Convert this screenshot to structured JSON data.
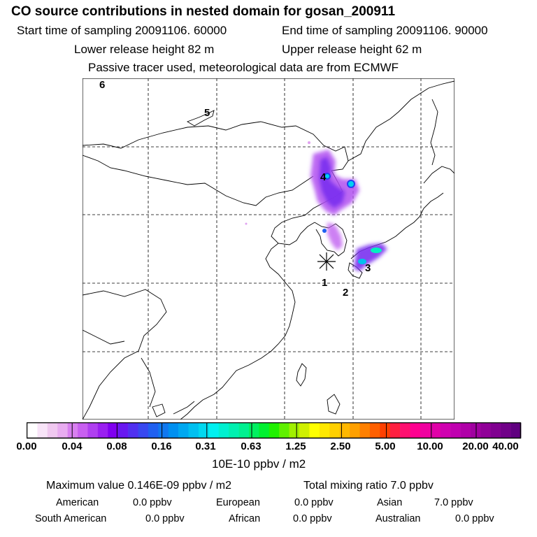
{
  "header": {
    "title": "CO  source contributions in nested domain for gosan_200911",
    "start_label": "Start time of sampling 20091106. 60000",
    "end_label": "End time of sampling 20091106. 90000",
    "lower_height": "Lower release height   82 m",
    "upper_height": "Upper release height   62 m",
    "tracer_note": "Passive tracer used, meteorological data are from ECMWF"
  },
  "map": {
    "site_markers": [
      "1",
      "2",
      "3",
      "4",
      "5",
      "6"
    ],
    "receptor_symbol": "*"
  },
  "colorbar": {
    "ticks": [
      "0.00",
      "0.04",
      "0.08",
      "0.16",
      "0.31",
      "0.63",
      "1.25",
      "2.50",
      "5.00",
      "10.00",
      "20.00",
      "40.00"
    ],
    "units": "10E-10 ppbv / m2",
    "colors": [
      "#ffffff",
      "#f8e4f8",
      "#f0c8f0",
      "#e8acf0",
      "#d880f0",
      "#c860f0",
      "#b040f0",
      "#9a20f0",
      "#8000f0",
      "#6818f0",
      "#5030f0",
      "#3848f0",
      "#2060f0",
      "#1078f0",
      "#0090f0",
      "#00a8f0",
      "#00c0f0",
      "#00d8f0",
      "#00f0f0",
      "#00f0d0",
      "#00f0b0",
      "#00f090",
      "#00f060",
      "#00f030",
      "#20f000",
      "#60f000",
      "#a0f000",
      "#d0f000",
      "#ffff00",
      "#ffe800",
      "#ffd000",
      "#ffb800",
      "#ffa000",
      "#ff8000",
      "#ff6000",
      "#ff4000",
      "#ff2040",
      "#ff1070",
      "#ff0090",
      "#f000a0",
      "#e000a8",
      "#d000b0",
      "#c000b0",
      "#b000a8",
      "#a000a0",
      "#900098",
      "#800090",
      "#700088",
      "#600080"
    ]
  },
  "summary": {
    "max_value": "Maximum value  0.146E-09 ppbv / m2",
    "total_mixing": "Total mixing ratio        7.0 ppbv",
    "american_label": "American",
    "american_value": "0.0 ppbv",
    "european_label": "European",
    "european_value": "0.0 ppbv",
    "asian_label": "Asian",
    "asian_value": "7.0 ppbv",
    "south_american_label": "South American",
    "south_american_value": "0.0 ppbv",
    "african_label": "African",
    "african_value": "0.0 ppbv",
    "australian_label": "Australian",
    "australian_value": "0.0 ppbv"
  }
}
